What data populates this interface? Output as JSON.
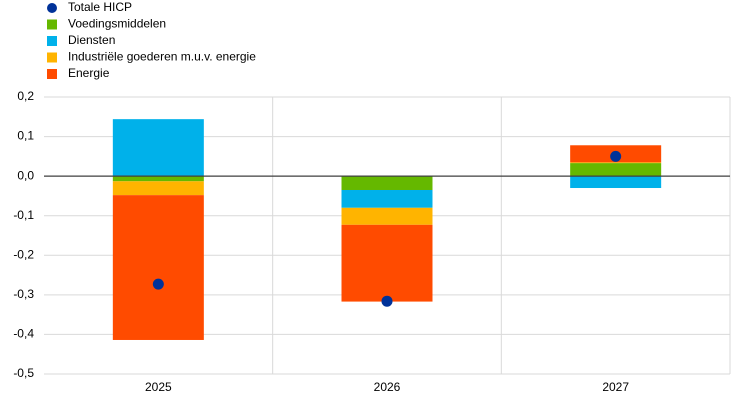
{
  "chart_data": {
    "type": "bar",
    "stacked": true,
    "categories": [
      "2025",
      "2026",
      "2027"
    ],
    "series": [
      {
        "name": "Totale HICP",
        "type": "scatter",
        "color": "#003299",
        "values": [
          -0.273,
          -0.316,
          0.05
        ]
      },
      {
        "name": "Voedingsmiddelen",
        "type": "bar",
        "color": "#65b800",
        "values": [
          -0.013,
          -0.035,
          0.033
        ]
      },
      {
        "name": "Diensten",
        "type": "bar",
        "color": "#00b1ea",
        "values": [
          0.144,
          -0.045,
          -0.03
        ]
      },
      {
        "name": "Industriële goederen m.u.v. energie",
        "type": "bar",
        "color": "#ffb400",
        "values": [
          -0.035,
          -0.043,
          0.002
        ]
      },
      {
        "name": "Energie",
        "type": "bar",
        "color": "#ff4b00",
        "values": [
          -0.366,
          -0.194,
          0.043
        ]
      }
    ],
    "ylim": [
      -0.5,
      0.2
    ],
    "yticks": [
      {
        "value": -0.5,
        "label": "-0,5"
      },
      {
        "value": -0.4,
        "label": "-0,4"
      },
      {
        "value": -0.3,
        "label": "-0,3"
      },
      {
        "value": -0.2,
        "label": "-0,2"
      },
      {
        "value": -0.1,
        "label": "-0,1"
      },
      {
        "value": 0,
        "label": "0,0"
      },
      {
        "value": 0.1,
        "label": "0,1"
      },
      {
        "value": 0.2,
        "label": "0,2"
      }
    ],
    "grid": true,
    "legend": "top-left"
  }
}
